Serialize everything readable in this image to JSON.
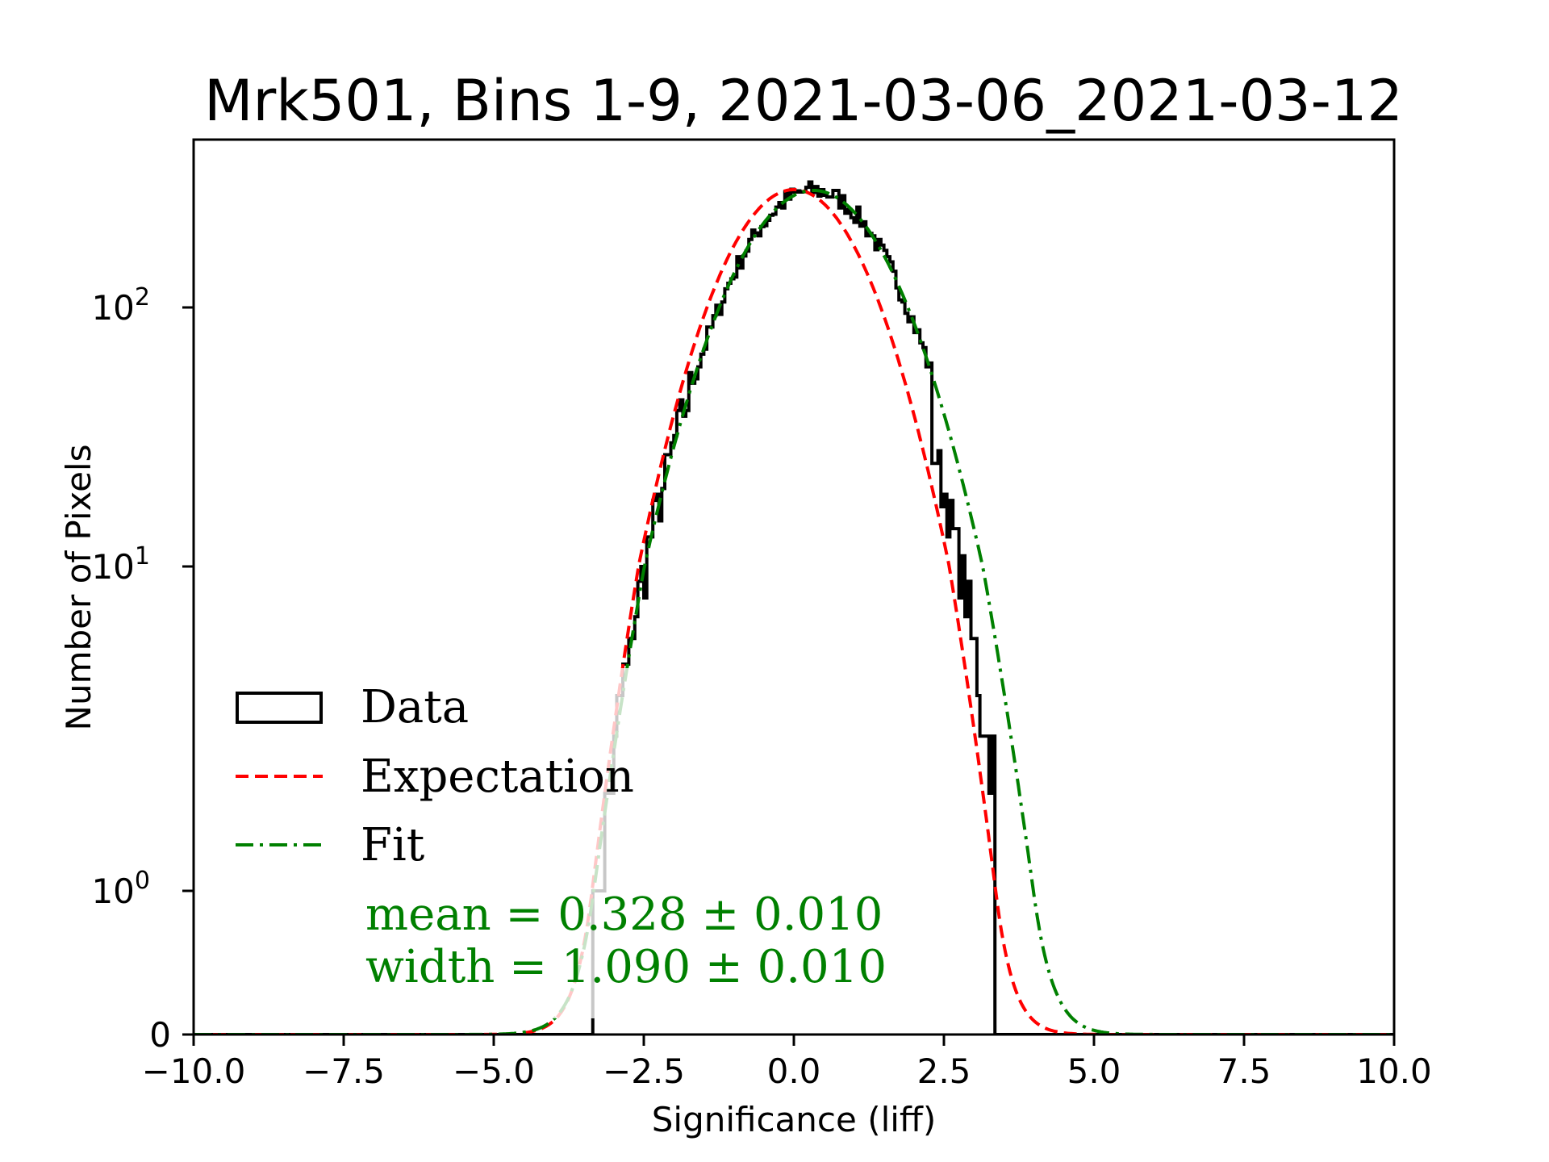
{
  "chart_data": {
    "type": "histogram",
    "title": "Mrk501, Bins 1-9, 2021-03-06_2021-03-12",
    "xlabel": "Significance (liff)",
    "ylabel": "Number of Pixels",
    "xlim": [
      -10.0,
      10.0
    ],
    "ylim": [
      0,
      445
    ],
    "yscale": "log-like with zero",
    "xticks": [
      -10.0,
      -7.5,
      -5.0,
      -2.5,
      0.0,
      2.5,
      5.0,
      7.5,
      10.0
    ],
    "xtick_labels": [
      "−10.0",
      "−7.5",
      "−5.0",
      "−2.5",
      "0.0",
      "2.5",
      "5.0",
      "7.5",
      "10.0"
    ],
    "yticks": [
      {
        "value": 0,
        "base": "0",
        "exp": ""
      },
      {
        "value": 1,
        "base": "10",
        "exp": "0"
      },
      {
        "value": 10,
        "base": "10",
        "exp": "1"
      },
      {
        "value": 100,
        "base": "10",
        "exp": "2"
      }
    ],
    "series": [
      {
        "name": "Data",
        "kind": "step-histogram",
        "color": "#000000",
        "bin_width": 0.05,
        "x_range": [
          -3.35,
          3.35
        ],
        "approx_peak": 290,
        "approx_peak_x": 0.82
      },
      {
        "name": "Expectation",
        "kind": "gaussian",
        "color": "#ff0000",
        "linestyle": "dashed",
        "mean": 0.0,
        "width": 1.0,
        "peak": 285
      },
      {
        "name": "Fit",
        "kind": "gaussian",
        "color": "#008000",
        "linestyle": "dashdot",
        "mean": 0.328,
        "width": 1.09,
        "peak": 283
      }
    ],
    "legend": {
      "position": "lower-left",
      "entries": [
        "Data",
        "Expectation",
        "Fit"
      ]
    },
    "annotations": [
      "mean = 0.328 ± 0.010",
      "width = 1.090 ± 0.010"
    ],
    "annotation_color": "#008000"
  }
}
